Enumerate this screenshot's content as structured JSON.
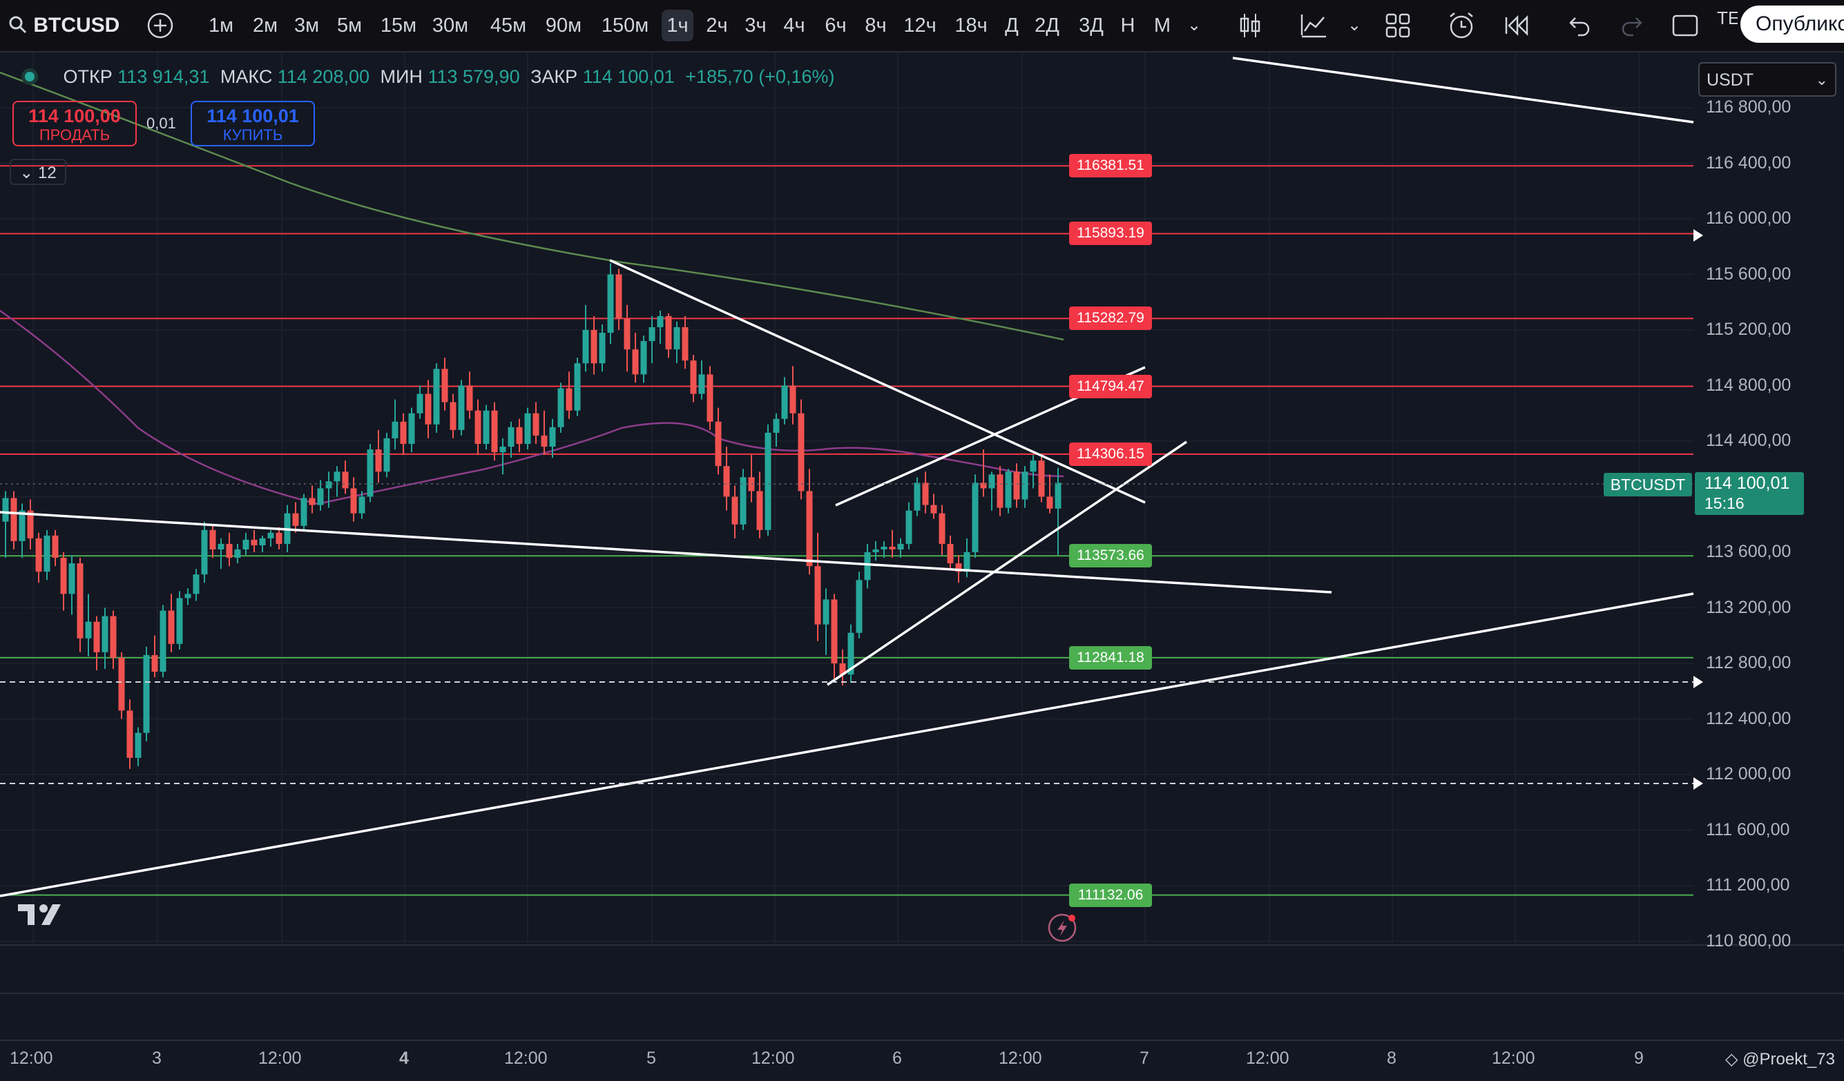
{
  "toolbar": {
    "symbol": "BTCUSD",
    "timeframes": [
      "1м",
      "2м",
      "3м",
      "5м",
      "15м",
      "30м",
      "45м",
      "90м",
      "150м",
      "1ч",
      "2ч",
      "3ч",
      "4ч",
      "6ч",
      "8ч",
      "12ч",
      "18ч",
      "Д",
      "2Д",
      "3Д",
      "Н",
      "М"
    ],
    "active_timeframe": "1ч",
    "publish_label": "Опубликовать",
    "icons": [
      "search-icon",
      "add-symbol-icon",
      "chevron-down-icon",
      "candles-icon",
      "indicators-icon",
      "templates-icon",
      "alert-icon",
      "replay-icon",
      "undo-icon",
      "redo-icon",
      "fullscreen-icon"
    ],
    "cut_label": "ТЕ"
  },
  "legend": {
    "open_label": "ОТКР",
    "open": "113 914,31",
    "high_label": "МАКС",
    "high": "114 208,00",
    "low_label": "МИН",
    "low": "113 579,90",
    "close_label": "ЗАКР",
    "close": "114 100,01",
    "change": "+185,70 (+0,16%)"
  },
  "trade": {
    "sell_price": "114 100,00",
    "sell_label": "ПРОДАТЬ",
    "spread": "0,01",
    "buy_price": "114 100,01",
    "buy_label": "КУПИТЬ",
    "collapse_count": "12"
  },
  "currency": "USDT",
  "price_axis": [
    "116 800,00",
    "116 400,00",
    "116 000,00",
    "115 600,00",
    "115 200,00",
    "114 800,00",
    "114 400,00",
    "114 000,00",
    "113 600,00",
    "113 200,00",
    "112 800,00",
    "112 400,00",
    "112 000,00",
    "111 600,00",
    "111 200,00",
    "110 800,00"
  ],
  "time_axis": [
    "12:00",
    "3",
    "12:00",
    "4",
    "12:00",
    "5",
    "12:00",
    "6",
    "12:00",
    "7",
    "12:00",
    "8",
    "12:00",
    "9"
  ],
  "current_price": {
    "symbol": "BTCUSDT",
    "price": "114 100,01",
    "countdown": "15:16"
  },
  "levels": [
    {
      "value": "116381.51",
      "color": "#f23645"
    },
    {
      "value": "115893.19",
      "color": "#f23645"
    },
    {
      "value": "115282.79",
      "color": "#f23645"
    },
    {
      "value": "114794.47",
      "color": "#f23645"
    },
    {
      "value": "114306.15",
      "color": "#f23645"
    },
    {
      "value": "113573.66",
      "color": "#4caf50"
    },
    {
      "value": "112841.18",
      "color": "#4caf50"
    },
    {
      "value": "111132.06",
      "color": "#4caf50"
    }
  ],
  "watermark": "@Proekt_73",
  "colors": {
    "up": "#26a69a",
    "down": "#ef5350",
    "background": "#131722"
  }
}
